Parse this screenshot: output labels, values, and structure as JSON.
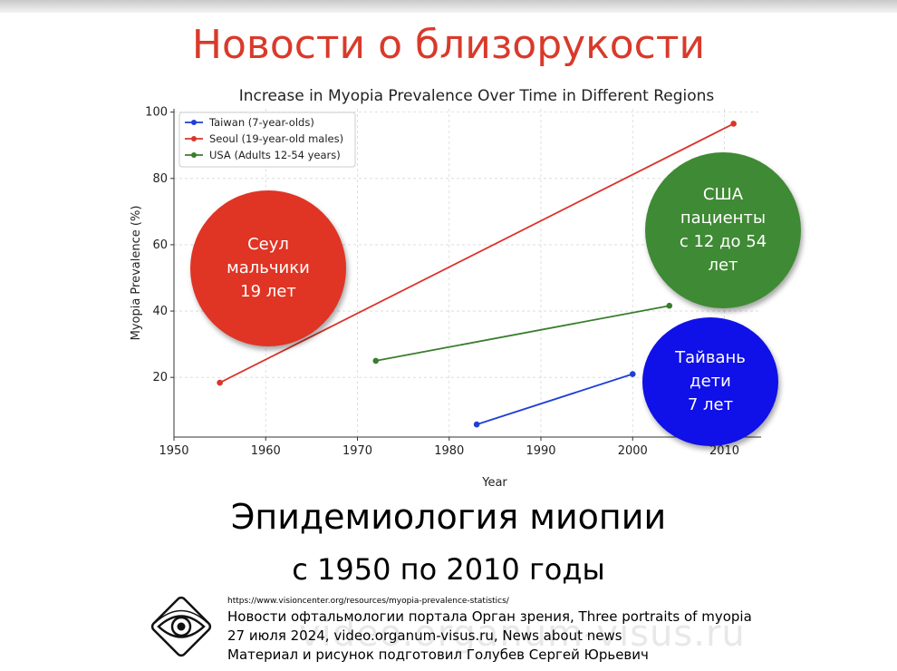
{
  "slide": {
    "title": "Новости о близорукости",
    "title_color": "#d93a2b",
    "subtitle_line1": "Эпидемиология миопии",
    "subtitle_line2": "с 1950 по 2010 годы"
  },
  "bubbles": [
    {
      "lines": [
        "Сеул",
        "мальчики",
        "19 лет"
      ],
      "color": "#e03424"
    },
    {
      "lines": [
        "США",
        "пациенты",
        "с 12 до 54",
        "лет"
      ],
      "color": "#3f8a34"
    },
    {
      "lines": [
        "Тайвань",
        "дети",
        "7 лет"
      ],
      "color": "#1010e8"
    }
  ],
  "credits": {
    "url": "https://www.visioncenter.org/resources/myopia-prevalence-statistics/",
    "line1": "Новости офтальмологии портала Орган зрения, Three portraits of myopia",
    "line2": "27 июля 2024, video.organum-visus.ru, News about news",
    "line3": "Материал и рисунок подготовил Голубев Сергей Юрьевич",
    "watermark": "video.organum-visus.ru"
  },
  "chart_data": {
    "type": "line",
    "title": "Increase in Myopia Prevalence Over Time in Different Regions",
    "xlabel": "Year",
    "ylabel": "Myopia Prevalence (%)",
    "xlim": [
      1950,
      2014
    ],
    "ylim": [
      2,
      101
    ],
    "xticks": [
      1950,
      1960,
      1970,
      1980,
      1990,
      2000,
      2010
    ],
    "yticks": [
      20,
      40,
      60,
      80,
      100
    ],
    "grid": true,
    "legend": "top-left",
    "series": [
      {
        "name": "Taiwan (7-year-olds)",
        "color": "#1f3fd6",
        "x": [
          1983,
          2000
        ],
        "y": [
          5.8,
          21.0
        ]
      },
      {
        "name": "Seoul (19-year-old males)",
        "color": "#d9352a",
        "x": [
          1955,
          2011
        ],
        "y": [
          18.4,
          96.5
        ]
      },
      {
        "name": "USA (Adults 12-54 years)",
        "color": "#3b7d2e",
        "x": [
          1972,
          2004
        ],
        "y": [
          25.0,
          41.6
        ]
      }
    ]
  }
}
